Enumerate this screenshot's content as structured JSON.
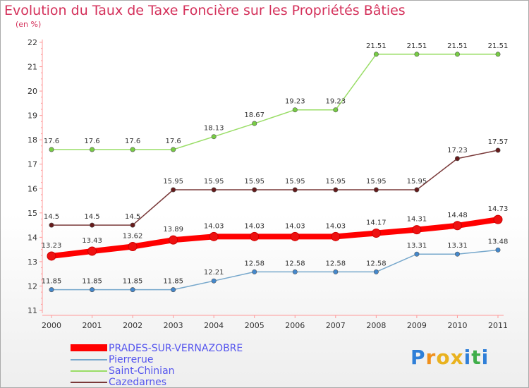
{
  "title": "Evolution du Taux de Taxe Foncière sur les Propriétés Bâties",
  "unit_label": "(en %)",
  "logo": {
    "text": "Proxiti",
    "letters": [
      "P",
      "r",
      "o",
      "x",
      "i",
      "t",
      "i"
    ],
    "colors": [
      "#2f7fd8",
      "#f0901c",
      "#e9b21f",
      "#e9b21f",
      "#2f7fd8",
      "#3fae4a",
      "#2f7fd8"
    ]
  },
  "chart_data": {
    "type": "line",
    "x": [
      "2000",
      "2001",
      "2002",
      "2003",
      "2004",
      "2005",
      "2006",
      "2007",
      "2008",
      "2009",
      "2010",
      "2011"
    ],
    "ylim": [
      11,
      22
    ],
    "yticks": [
      11,
      12,
      13,
      14,
      15,
      16,
      17,
      18,
      19,
      20,
      21,
      22
    ],
    "grid": false,
    "legend_position": "bottom-left",
    "series": [
      {
        "name": "PRADES-SUR-VERNAZOBRE",
        "color": "#ff0000",
        "marker_fill": "#ee1111",
        "values": [
          13.23,
          13.43,
          13.62,
          13.89,
          14.03,
          14.03,
          14.03,
          14.03,
          14.17,
          14.31,
          14.48,
          14.73
        ],
        "labels": [
          "13.23",
          "13.43",
          "13.62",
          "13.89",
          "14.03",
          "14.03",
          "14.03",
          "14.03",
          "14.17",
          "14.31",
          "14.48",
          "14.73"
        ]
      },
      {
        "name": "Pierrerue",
        "color": "#77a8cc",
        "marker_fill": "#4488cc",
        "values": [
          11.85,
          11.85,
          11.85,
          11.85,
          12.21,
          12.58,
          12.58,
          12.58,
          12.58,
          13.31,
          13.31,
          13.48
        ],
        "labels": [
          "11.85",
          "11.85",
          "11.85",
          "11.85",
          "12.21",
          "12.58",
          "12.58",
          "12.58",
          "12.58",
          "13.31",
          "13.31",
          "13.48"
        ]
      },
      {
        "name": "Saint-Chinian",
        "color": "#99dd66",
        "marker_fill": "#77cc44",
        "values": [
          17.6,
          17.6,
          17.6,
          17.6,
          18.13,
          18.67,
          19.23,
          19.23,
          21.51,
          21.51,
          21.51,
          21.51
        ],
        "labels": [
          "17.6",
          "17.6",
          "17.6",
          "17.6",
          "18.13",
          "18.67",
          "19.23",
          "19.23",
          "21.51",
          "21.51",
          "21.51",
          "21.51"
        ]
      },
      {
        "name": "Cazedarnes",
        "color": "#7a3a3a",
        "marker_fill": "#661a1a",
        "values": [
          14.5,
          14.5,
          14.5,
          15.95,
          15.95,
          15.95,
          15.95,
          15.95,
          15.95,
          15.95,
          17.23,
          17.57
        ],
        "labels": [
          "14.5",
          "14.5",
          "14.5",
          "15.95",
          "15.95",
          "15.95",
          "15.95",
          "15.95",
          "15.95",
          "15.95",
          "17.23",
          "17.57"
        ]
      }
    ]
  }
}
